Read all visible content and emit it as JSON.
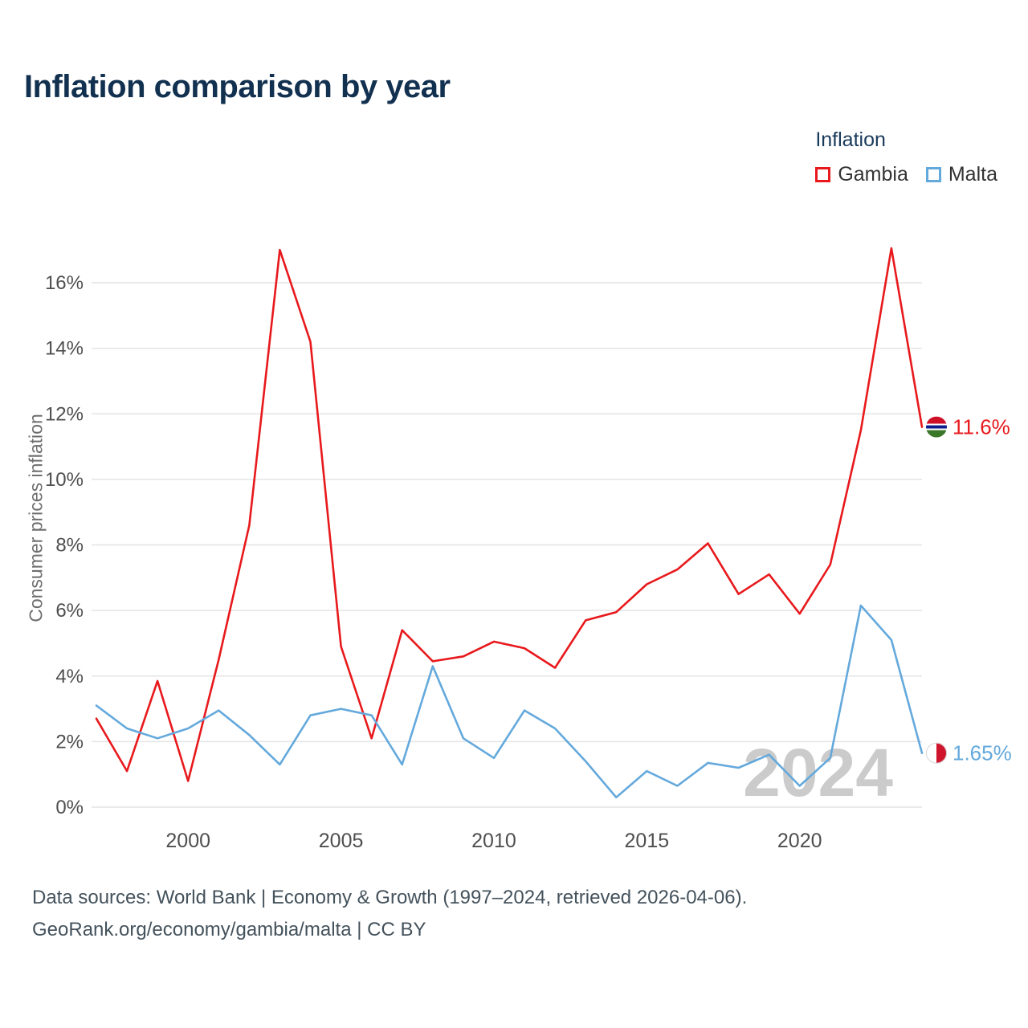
{
  "header": {
    "title": "Inflation comparison by year"
  },
  "legend": {
    "title": "Inflation",
    "items": [
      {
        "label": "Gambia",
        "color": "#e8191c"
      },
      {
        "label": "Malta",
        "color": "#64a9dc"
      }
    ]
  },
  "chart_data": {
    "type": "line",
    "title": "Inflation comparison by year",
    "xlabel": "",
    "ylabel": "Consumer prices inflation",
    "x": [
      1997,
      1998,
      1999,
      2000,
      2001,
      2002,
      2003,
      2004,
      2005,
      2006,
      2007,
      2008,
      2009,
      2010,
      2011,
      2012,
      2013,
      2014,
      2015,
      2016,
      2017,
      2018,
      2019,
      2020,
      2021,
      2022,
      2023,
      2024
    ],
    "series": [
      {
        "name": "Gambia",
        "color": "#e8191c",
        "end_label": "11.6%",
        "values": [
          2.7,
          1.1,
          3.85,
          0.8,
          4.5,
          8.6,
          17.0,
          14.2,
          4.9,
          2.1,
          5.4,
          4.45,
          4.6,
          5.05,
          4.85,
          4.25,
          5.7,
          5.95,
          6.8,
          7.25,
          8.05,
          6.5,
          7.1,
          5.9,
          7.4,
          11.5,
          17.05,
          11.6
        ]
      },
      {
        "name": "Malta",
        "color": "#64a9dc",
        "end_label": "1.65%",
        "values": [
          3.1,
          2.4,
          2.1,
          2.4,
          2.95,
          2.2,
          1.3,
          2.8,
          3.0,
          2.8,
          1.3,
          4.3,
          2.1,
          1.5,
          2.95,
          2.4,
          1.4,
          0.3,
          1.1,
          0.65,
          1.35,
          1.2,
          1.6,
          0.65,
          1.5,
          6.15,
          5.1,
          1.65
        ]
      }
    ],
    "y_ticks": [
      "0%",
      "2%",
      "4%",
      "6%",
      "8%",
      "10%",
      "12%",
      "14%",
      "16%"
    ],
    "x_ticks": [
      2000,
      2005,
      2010,
      2015,
      2020
    ],
    "ylim": [
      0,
      17.5
    ],
    "grid": true,
    "legend_position": "top-right"
  },
  "watermark": "2024",
  "footer": {
    "line1": "Data sources: World Bank | Economy & Growth (1997–2024, retrieved 2026-04-06).",
    "line2": "GeoRank.org/economy/gambia/malta | CC BY"
  },
  "colors": {
    "title": "#12304f",
    "grid": "#e4e4e4",
    "tick_text": "#4f4f4f",
    "watermark": "#cbcbcb",
    "gambia_flag": {
      "red": "#ce1126",
      "blue": "#0c1c8c",
      "green": "#3a7728",
      "white": "#ffffff"
    },
    "malta_flag": {
      "white": "#ffffff",
      "red": "#cf142b"
    }
  }
}
